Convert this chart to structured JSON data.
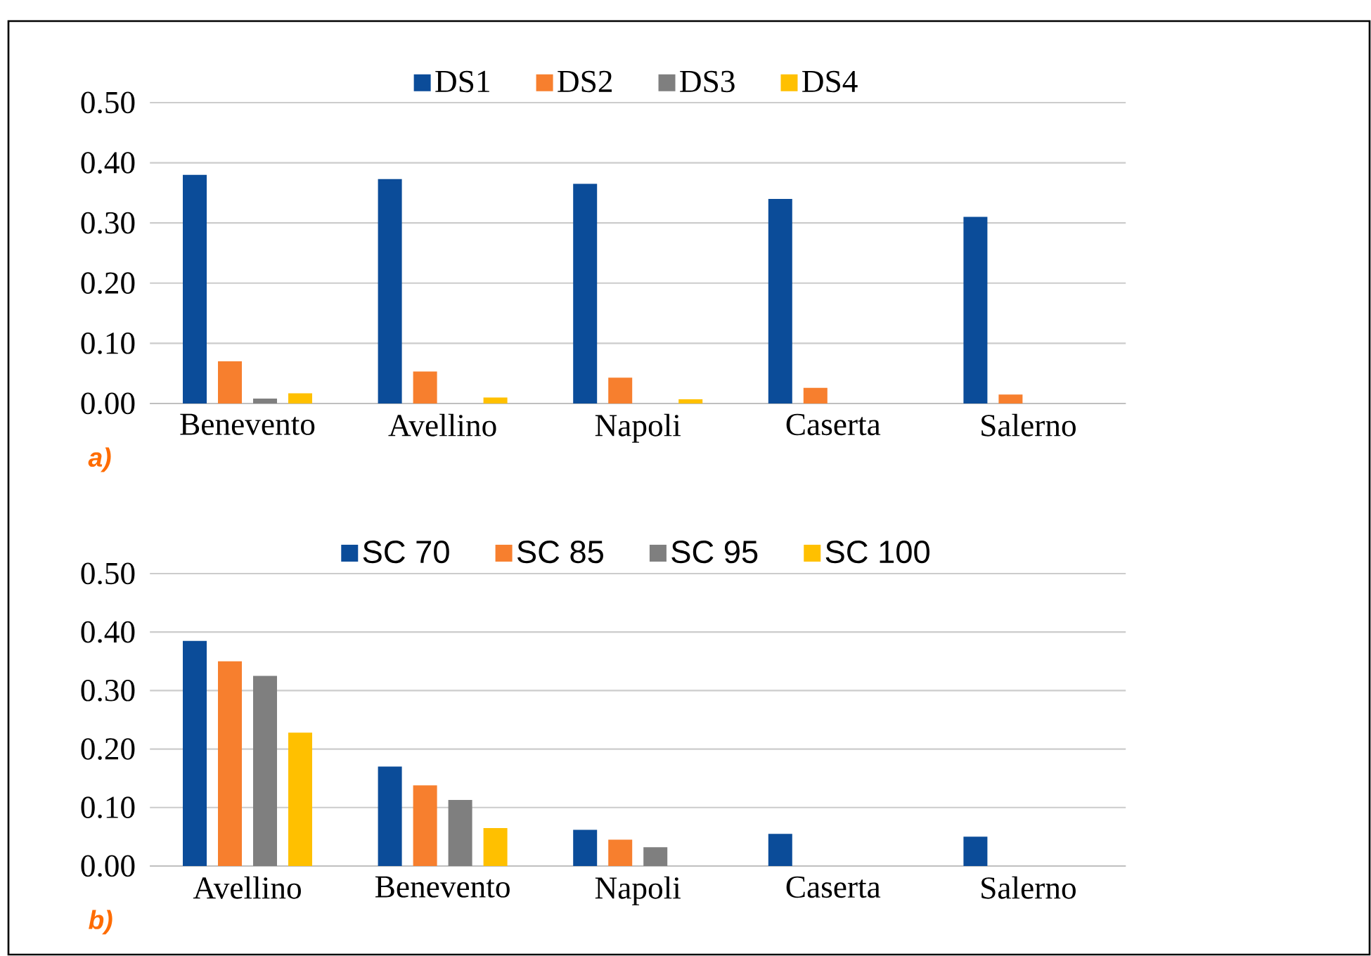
{
  "chart_data": [
    {
      "type": "bar",
      "categories": [
        "Benevento",
        "Avellino",
        "Napoli",
        "Caserta",
        "Salerno"
      ],
      "series": [
        {
          "name": "DS1",
          "color": "#0b4c99",
          "values": [
            0.38,
            0.373,
            0.365,
            0.34,
            0.31
          ]
        },
        {
          "name": "DS2",
          "color": "#f77f2e",
          "values": [
            0.07,
            0.053,
            0.043,
            0.026,
            0.015
          ]
        },
        {
          "name": "DS3",
          "color": "#7f7f7f",
          "values": [
            0.008,
            0,
            0,
            0,
            0
          ]
        },
        {
          "name": "DS4",
          "color": "#ffc000",
          "values": [
            0.017,
            0.01,
            0.007,
            0,
            0
          ]
        }
      ],
      "ylim": [
        0,
        0.5
      ],
      "yticks": [
        {
          "value": 0,
          "label": "0.00"
        },
        {
          "value": 0.1,
          "label": "0.10"
        },
        {
          "value": 0.2,
          "label": "0.20"
        },
        {
          "value": 0.3,
          "label": "0.30"
        },
        {
          "value": 0.4,
          "label": "0.40"
        },
        {
          "value": 0.5,
          "label": "0.50"
        }
      ],
      "grid": "y",
      "legend": "top",
      "annotations": [
        "a)"
      ]
    },
    {
      "type": "bar",
      "categories": [
        "Avellino",
        "Benevento",
        "Napoli",
        "Caserta",
        "Salerno"
      ],
      "series": [
        {
          "name": "SC 70",
          "color": "#0b4c99",
          "values": [
            0.385,
            0.17,
            0.062,
            0.055,
            0.05
          ]
        },
        {
          "name": "SC 85",
          "color": "#f77f2e",
          "values": [
            0.35,
            0.138,
            0.045,
            0,
            0
          ]
        },
        {
          "name": "SC 95",
          "color": "#7f7f7f",
          "values": [
            0.325,
            0.113,
            0.032,
            0,
            0
          ]
        },
        {
          "name": "SC 100",
          "color": "#ffc000",
          "values": [
            0.228,
            0.065,
            0,
            0,
            0
          ]
        }
      ],
      "ylim": [
        0,
        0.5
      ],
      "yticks": [
        {
          "value": 0,
          "label": "0.00"
        },
        {
          "value": 0.1,
          "label": "0.10"
        },
        {
          "value": 0.2,
          "label": "0.20"
        },
        {
          "value": 0.3,
          "label": "0.30"
        },
        {
          "value": 0.4,
          "label": "0.40"
        },
        {
          "value": 0.5,
          "label": "0.50"
        }
      ],
      "grid": "y",
      "legend": "top",
      "annotations": [
        "b)"
      ]
    }
  ]
}
